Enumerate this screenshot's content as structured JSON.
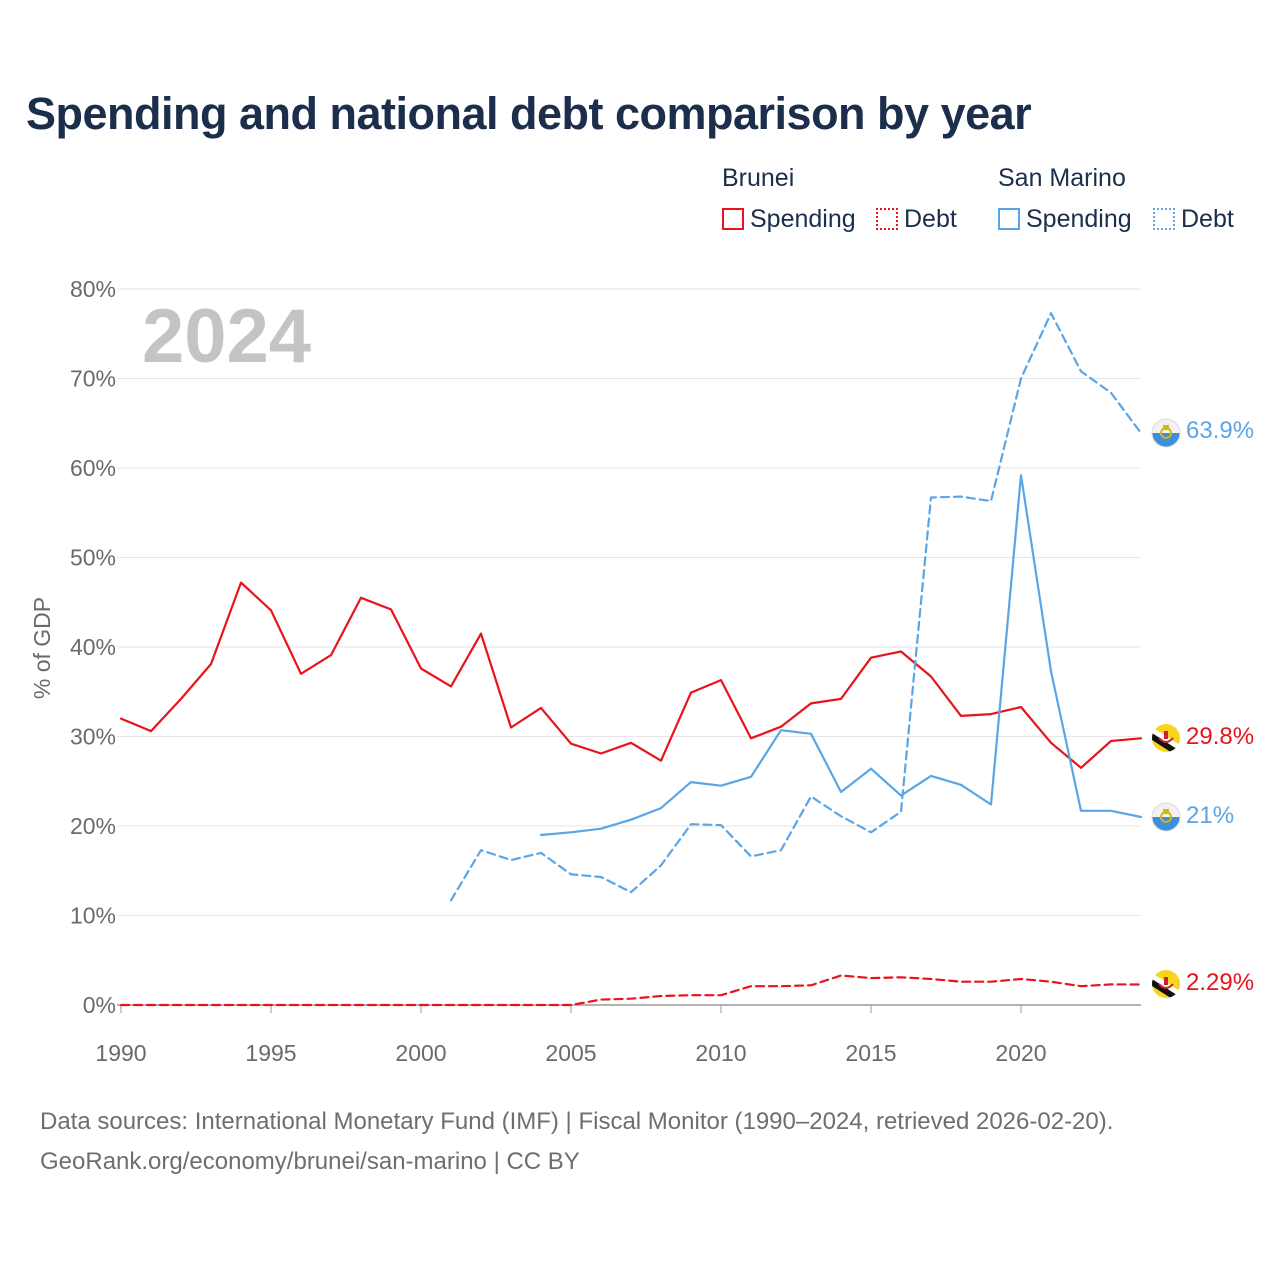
{
  "title": "Spending and national debt comparison by year",
  "legend": {
    "groups": [
      {
        "country": "Brunei",
        "items": [
          {
            "label": "Spending",
            "style": "solid",
            "color": "#e8131b"
          },
          {
            "label": "Debt",
            "style": "dotted",
            "color": "#e8131b"
          }
        ]
      },
      {
        "country": "San Marino",
        "items": [
          {
            "label": "Spending",
            "style": "solid",
            "color": "#5aa5e6"
          },
          {
            "label": "Debt",
            "style": "dotted",
            "color": "#5aa5e6"
          }
        ]
      }
    ]
  },
  "footer": {
    "line1": "Data sources: International Monetary Fund (IMF) | Fiscal Monitor (1990–2024, retrieved 2026-02-20).",
    "line2": "GeoRank.org/economy/brunei/san-marino | CC BY"
  },
  "chart_data": {
    "type": "line",
    "title": "Spending and national debt comparison by year",
    "xlabel": "",
    "ylabel": "% of GDP",
    "xlim": [
      1990,
      2024
    ],
    "ylim": [
      0,
      80
    ],
    "x_ticks": [
      1990,
      1995,
      2000,
      2005,
      2010,
      2015,
      2020
    ],
    "y_ticks": [
      0,
      10,
      20,
      30,
      40,
      50,
      60,
      70,
      80
    ],
    "y_tick_labels": [
      "0%",
      "10%",
      "20%",
      "30%",
      "40%",
      "50%",
      "60%",
      "70%",
      "80%"
    ],
    "grid": true,
    "year_watermark": "2024",
    "series": [
      {
        "name": "Brunei Spending",
        "country": "Brunei",
        "metric": "Spending",
        "color": "#e8131b",
        "dash": "solid",
        "end_label": "29.8%",
        "x": [
          1990,
          1991,
          1992,
          1993,
          1994,
          1995,
          1996,
          1997,
          1998,
          1999,
          2000,
          2001,
          2002,
          2003,
          2004,
          2005,
          2006,
          2007,
          2008,
          2009,
          2010,
          2011,
          2012,
          2013,
          2014,
          2015,
          2016,
          2017,
          2018,
          2019,
          2020,
          2021,
          2022,
          2023,
          2024
        ],
        "values": [
          32.0,
          30.6,
          34.2,
          38.1,
          47.2,
          44.1,
          37.0,
          39.1,
          45.5,
          44.2,
          37.6,
          35.6,
          41.5,
          31.0,
          33.2,
          29.2,
          28.1,
          29.3,
          27.3,
          34.9,
          36.3,
          29.8,
          31.1,
          33.7,
          34.2,
          38.8,
          39.5,
          36.7,
          32.3,
          32.5,
          33.3,
          29.3,
          26.5,
          29.5,
          29.8
        ]
      },
      {
        "name": "Brunei Debt",
        "country": "Brunei",
        "metric": "Debt",
        "color": "#e8131b",
        "dash": "dashed",
        "end_label": "2.29%",
        "x": [
          1990,
          1991,
          1992,
          1993,
          1994,
          1995,
          1996,
          1997,
          1998,
          1999,
          2000,
          2001,
          2002,
          2003,
          2004,
          2005,
          2006,
          2007,
          2008,
          2009,
          2010,
          2011,
          2012,
          2013,
          2014,
          2015,
          2016,
          2017,
          2018,
          2019,
          2020,
          2021,
          2022,
          2023,
          2024
        ],
        "values": [
          0,
          0,
          0,
          0,
          0,
          0,
          0,
          0,
          0,
          0,
          0,
          0,
          0,
          0,
          0,
          0,
          0.6,
          0.7,
          1.0,
          1.1,
          1.1,
          2.1,
          2.1,
          2.2,
          3.3,
          3.0,
          3.1,
          2.9,
          2.6,
          2.6,
          2.9,
          2.6,
          2.1,
          2.3,
          2.29
        ]
      },
      {
        "name": "San Marino Spending",
        "country": "San Marino",
        "metric": "Spending",
        "color": "#5aa5e6",
        "dash": "solid",
        "end_label": "21%",
        "x": [
          2004,
          2005,
          2006,
          2007,
          2008,
          2009,
          2010,
          2011,
          2012,
          2013,
          2014,
          2015,
          2016,
          2017,
          2018,
          2019,
          2020,
          2021,
          2022,
          2023,
          2024
        ],
        "values": [
          19.0,
          19.3,
          19.7,
          20.7,
          22.0,
          24.9,
          24.5,
          25.5,
          30.7,
          30.3,
          23.8,
          26.4,
          23.4,
          25.6,
          24.6,
          22.4,
          59.2,
          37.3,
          21.7,
          21.7,
          21.0
        ]
      },
      {
        "name": "San Marino Debt",
        "country": "San Marino",
        "metric": "Debt",
        "color": "#5aa5e6",
        "dash": "dashed",
        "end_label": "63.9%",
        "x": [
          2001,
          2002,
          2003,
          2004,
          2005,
          2006,
          2007,
          2008,
          2009,
          2010,
          2011,
          2012,
          2013,
          2014,
          2015,
          2016,
          2017,
          2018,
          2019,
          2020,
          2021,
          2022,
          2023,
          2024
        ],
        "values": [
          11.7,
          17.3,
          16.2,
          17.0,
          14.6,
          14.3,
          12.6,
          15.6,
          20.2,
          20.1,
          16.6,
          17.3,
          23.3,
          21.1,
          19.3,
          21.6,
          56.7,
          56.8,
          56.3,
          70.0,
          77.3,
          70.8,
          68.4,
          63.9
        ]
      }
    ]
  }
}
